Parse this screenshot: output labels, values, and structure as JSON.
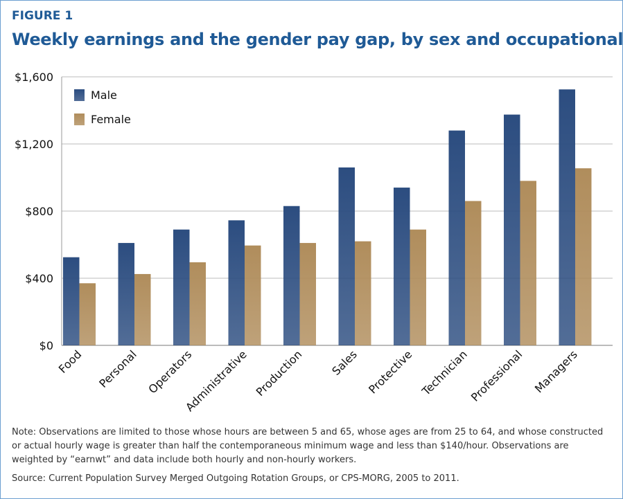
{
  "header": {
    "figure": "FIGURE 1"
  },
  "chart_data": {
    "type": "bar",
    "title": "Weekly earnings and the gender pay gap, by sex and occupational group",
    "categories": [
      "Food",
      "Personal",
      "Operators",
      "Administrative",
      "Production",
      "Sales",
      "Protective",
      "Technician",
      "Professional",
      "Managers"
    ],
    "series": [
      {
        "name": "Male",
        "color": "#2c4d80",
        "values": [
          525,
          610,
          690,
          745,
          830,
          1060,
          940,
          1280,
          1375,
          1525
        ]
      },
      {
        "name": "Female",
        "color": "#b08d5c",
        "values": [
          370,
          425,
          495,
          595,
          610,
          620,
          690,
          860,
          980,
          1055
        ]
      }
    ],
    "ylim": [
      0,
      1600
    ],
    "yticks": [
      {
        "value": 0,
        "label": "$0"
      },
      {
        "value": 400,
        "label": "$400"
      },
      {
        "value": 800,
        "label": "$800"
      },
      {
        "value": 1200,
        "label": "$1,200"
      },
      {
        "value": 1600,
        "label": "$1,600"
      }
    ],
    "grid": true,
    "legend": "top-left",
    "note": "Note: Observations are limited to those whose hours are between 5 and 65, whose ages are from 25 to 64, and whose constructed or actual hourly wage is greater than half the contemporaneous minimum wage and less than $140/hour. Observations are weighted by “earnwt” and data include both hourly and non-hourly workers.",
    "source": "Source: Current Population Survey Merged Outgoing Rotation Groups, or CPS-MORG, 2005 to 2011."
  }
}
